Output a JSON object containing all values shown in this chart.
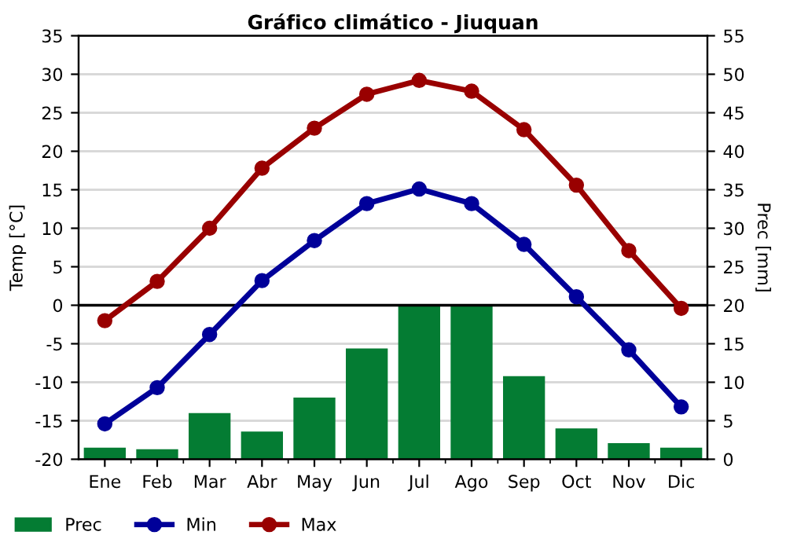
{
  "chart_data": {
    "type": "bar",
    "title": "Gráfico climático - Jiuquan",
    "ylabel": "Temp [°C]",
    "y2label": "Prec [mm]",
    "categories": [
      "Ene",
      "Feb",
      "Mar",
      "Abr",
      "May",
      "Jun",
      "Jul",
      "Ago",
      "Sep",
      "Oct",
      "Nov",
      "Dic"
    ],
    "series": [
      {
        "name": "Prec",
        "axis": "y2",
        "color": "#047c33",
        "values": [
          1.5,
          1.3,
          6,
          3.6,
          8,
          14.4,
          20,
          20,
          10.8,
          4,
          2.1,
          1.5
        ]
      },
      {
        "name": "Min",
        "type": "line",
        "color": "#000099",
        "values": [
          -15.4,
          -10.7,
          -3.8,
          3.2,
          8.4,
          13.2,
          15.1,
          13.2,
          7.9,
          1.1,
          -5.8,
          -13.2
        ]
      },
      {
        "name": "Max",
        "type": "line",
        "color": "#990000",
        "values": [
          -2,
          3.1,
          10,
          17.8,
          23,
          27.4,
          29.2,
          27.8,
          22.8,
          15.6,
          7.1,
          -0.4
        ]
      }
    ],
    "ylim": [
      -20,
      35
    ],
    "yticks": [
      -20,
      -15,
      -10,
      -5,
      0,
      5,
      10,
      15,
      20,
      25,
      30,
      35
    ],
    "y2lim": [
      0,
      55
    ],
    "y2ticks": [
      0,
      5,
      10,
      15,
      20,
      25,
      30,
      35,
      40,
      45,
      50,
      55
    ],
    "ref_lines": [
      {
        "axis": "y",
        "value": 0,
        "color": "#000000"
      }
    ],
    "grid": true,
    "legend": "bottom left",
    "marker": "circle",
    "line_style": "solid"
  }
}
